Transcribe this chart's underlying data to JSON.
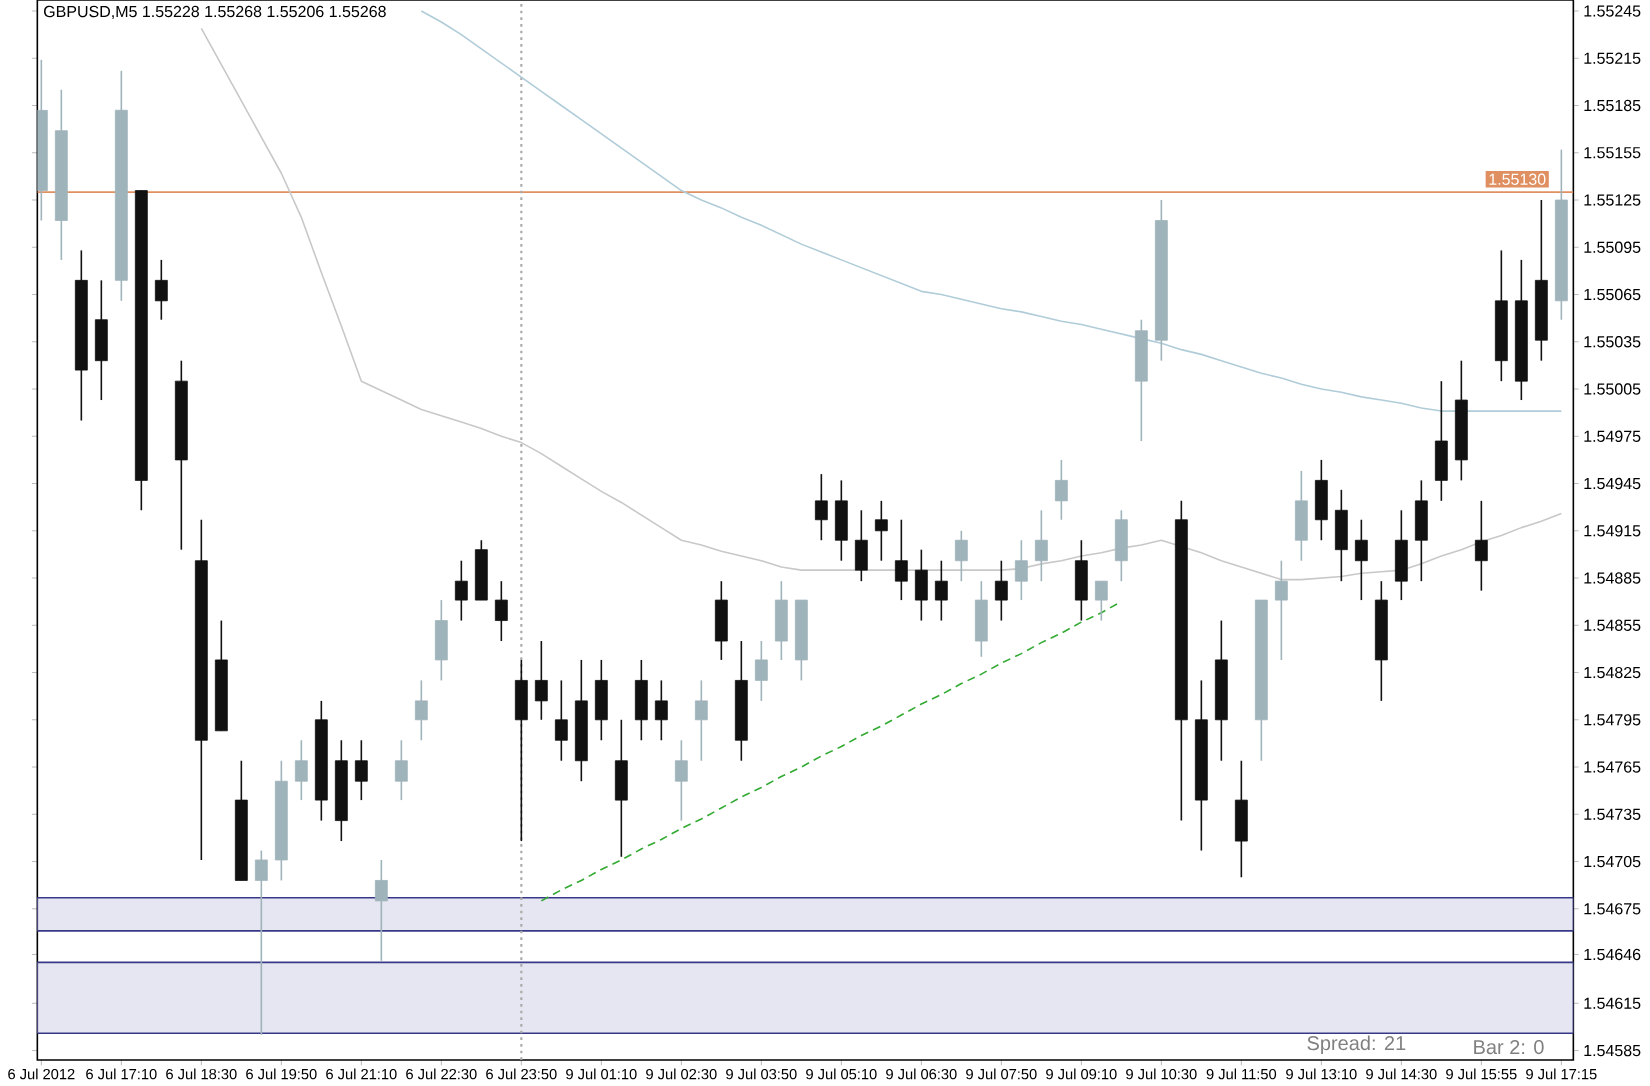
{
  "chart_data": {
    "type": "candlestick",
    "title": "GBPUSD,M5  1.55228 1.55268 1.55206 1.55268",
    "categories": [
      "6 Jul 2012",
      null,
      null,
      null,
      "6 Jul 17:10",
      null,
      null,
      null,
      "6 Jul 18:30",
      null,
      null,
      null,
      "6 Jul 19:50",
      null,
      null,
      null,
      "6 Jul 21:10",
      null,
      null,
      null,
      "6 Jul 22:30",
      null,
      null,
      null,
      "6 Jul 23:50",
      null,
      null,
      null,
      "9 Jul 01:10",
      null,
      null,
      null,
      "9 Jul 02:30",
      null,
      null,
      null,
      "9 Jul 03:50",
      null,
      null,
      null,
      "9 Jul 05:10",
      null,
      null,
      null,
      "9 Jul 06:30",
      null,
      null,
      null,
      "9 Jul 07:50",
      null,
      null,
      null,
      "9 Jul 09:10",
      null,
      null,
      null,
      "9 Jul 10:30",
      null,
      null,
      null,
      "9 Jul 11:50",
      null,
      null,
      null,
      "9 Jul 13:10",
      null,
      null,
      null,
      "9 Jul 14:30",
      null,
      null,
      null,
      "9 Jul 15:55",
      null,
      null,
      null,
      "9 Jul 17:15"
    ],
    "ohlc": [
      [
        1.55131,
        1.55214,
        1.55112,
        1.55182
      ],
      [
        1.55112,
        1.55195,
        1.55087,
        1.55169
      ],
      [
        1.55074,
        1.55093,
        1.54985,
        1.55017
      ],
      [
        1.55049,
        1.55074,
        1.54998,
        1.55023
      ],
      [
        1.55074,
        1.55207,
        1.55061,
        1.55182
      ],
      [
        1.55131,
        1.55131,
        1.54928,
        1.54947
      ],
      [
        1.55074,
        1.55087,
        1.55049,
        1.55061
      ],
      [
        1.5501,
        1.55023,
        1.54903,
        1.5496
      ],
      [
        1.54896,
        1.54922,
        1.54706,
        1.54782
      ],
      [
        1.54833,
        1.54858,
        1.54788,
        1.54788
      ],
      [
        1.54744,
        1.54769,
        1.54693,
        1.54693
      ],
      [
        1.54693,
        1.54712,
        1.54595,
        1.54706
      ],
      [
        1.54706,
        1.54769,
        1.54693,
        1.54756
      ],
      [
        1.54756,
        1.54782,
        1.54744,
        1.54769
      ],
      [
        1.54795,
        1.54807,
        1.54731,
        1.54744
      ],
      [
        1.54769,
        1.54782,
        1.54718,
        1.54731
      ],
      [
        1.54769,
        1.54782,
        1.54744,
        1.54756
      ],
      [
        1.5468,
        1.54706,
        1.54642,
        1.54693
      ],
      [
        1.54756,
        1.54782,
        1.54744,
        1.54769
      ],
      [
        1.54795,
        1.5482,
        1.54782,
        1.54807
      ],
      [
        1.54833,
        1.54871,
        1.5482,
        1.54858
      ],
      [
        1.54883,
        1.54896,
        1.54858,
        1.54871
      ],
      [
        1.54903,
        1.54909,
        1.54871,
        1.54871
      ],
      [
        1.54871,
        1.54883,
        1.54845,
        1.54858
      ],
      [
        1.5482,
        1.54833,
        1.54718,
        1.54795
      ],
      [
        1.5482,
        1.54845,
        1.54795,
        1.54807
      ],
      [
        1.54795,
        1.5482,
        1.54769,
        1.54782
      ],
      [
        1.54807,
        1.54833,
        1.54756,
        1.54769
      ],
      [
        1.5482,
        1.54833,
        1.54782,
        1.54795
      ],
      [
        1.54769,
        1.54795,
        1.54708,
        1.54744
      ],
      [
        1.5482,
        1.54833,
        1.54782,
        1.54795
      ],
      [
        1.54807,
        1.5482,
        1.54782,
        1.54795
      ],
      [
        1.54756,
        1.54782,
        1.54731,
        1.54769
      ],
      [
        1.54795,
        1.5482,
        1.54769,
        1.54807
      ],
      [
        1.54871,
        1.54883,
        1.54833,
        1.54845
      ],
      [
        1.5482,
        1.54845,
        1.54769,
        1.54782
      ],
      [
        1.5482,
        1.54845,
        1.54807,
        1.54833
      ],
      [
        1.54845,
        1.54883,
        1.54833,
        1.54871
      ],
      [
        1.54833,
        1.54871,
        1.5482,
        1.54871
      ],
      [
        1.54934,
        1.54951,
        1.54909,
        1.54922
      ],
      [
        1.54934,
        1.54947,
        1.54896,
        1.54909
      ],
      [
        1.54909,
        1.54928,
        1.54883,
        1.5489
      ],
      [
        1.54922,
        1.54934,
        1.54896,
        1.54915
      ],
      [
        1.54896,
        1.54922,
        1.54871,
        1.54883
      ],
      [
        1.5489,
        1.54903,
        1.54858,
        1.54871
      ],
      [
        1.54883,
        1.54896,
        1.54858,
        1.54871
      ],
      [
        1.54896,
        1.54915,
        1.54883,
        1.54909
      ],
      [
        1.54845,
        1.54883,
        1.54835,
        1.54871
      ],
      [
        1.54883,
        1.54896,
        1.54858,
        1.54871
      ],
      [
        1.54883,
        1.54909,
        1.54871,
        1.54896
      ],
      [
        1.54896,
        1.54928,
        1.54883,
        1.54909
      ],
      [
        1.54934,
        1.5496,
        1.54922,
        1.54947
      ],
      [
        1.54896,
        1.54909,
        1.54858,
        1.54871
      ],
      [
        1.54871,
        1.54883,
        1.54858,
        1.54883
      ],
      [
        1.54896,
        1.54928,
        1.54883,
        1.54922
      ],
      [
        1.5501,
        1.55049,
        1.54972,
        1.55042
      ],
      [
        1.55036,
        1.55125,
        1.55023,
        1.55112
      ],
      [
        1.54922,
        1.54934,
        1.54731,
        1.54795
      ],
      [
        1.54795,
        1.5482,
        1.54712,
        1.54744
      ],
      [
        1.54833,
        1.54858,
        1.54769,
        1.54795
      ],
      [
        1.54744,
        1.54769,
        1.54695,
        1.54718
      ],
      [
        1.54795,
        1.54871,
        1.54769,
        1.54871
      ],
      [
        1.54871,
        1.54896,
        1.54833,
        1.54883
      ],
      [
        1.54909,
        1.54953,
        1.54896,
        1.54934
      ],
      [
        1.54947,
        1.5496,
        1.54909,
        1.54922
      ],
      [
        1.54928,
        1.54941,
        1.54883,
        1.54903
      ],
      [
        1.54909,
        1.54922,
        1.54871,
        1.54896
      ],
      [
        1.54871,
        1.54883,
        1.54807,
        1.54833
      ],
      [
        1.54909,
        1.54928,
        1.54871,
        1.54883
      ],
      [
        1.54934,
        1.54947,
        1.54883,
        1.54909
      ],
      [
        1.54972,
        1.5501,
        1.54934,
        1.54947
      ],
      [
        1.54998,
        1.55023,
        1.54947,
        1.5496
      ],
      [
        1.54909,
        1.54934,
        1.54877,
        1.54896
      ],
      [
        1.55061,
        1.55093,
        1.5501,
        1.55023
      ],
      [
        1.55061,
        1.55087,
        1.54998,
        1.5501
      ],
      [
        1.55074,
        1.55125,
        1.55023,
        1.55036
      ],
      [
        1.55061,
        1.55157,
        1.55049,
        1.55125
      ]
    ],
    "colors": [
      "#9fb3ba",
      "#9fb3ba",
      "#111111",
      "#111111",
      "#9fb3ba",
      "#111111",
      "#111111",
      "#111111",
      "#111111",
      "#111111",
      "#111111",
      "#9fb3ba",
      "#9fb3ba",
      "#9fb3ba",
      "#111111",
      "#111111",
      "#111111",
      "#9fb3ba",
      "#9fb3ba",
      "#9fb3ba",
      "#9fb3ba",
      "#111111",
      "#111111",
      "#111111",
      "#111111",
      "#111111",
      "#111111",
      "#111111",
      "#111111",
      "#111111",
      "#111111",
      "#111111",
      "#9fb3ba",
      "#9fb3ba",
      "#111111",
      "#111111",
      "#9fb3ba",
      "#9fb3ba",
      "#9fb3ba",
      "#111111",
      "#111111",
      "#111111",
      "#111111",
      "#111111",
      "#111111",
      "#111111",
      "#9fb3ba",
      "#9fb3ba",
      "#111111",
      "#9fb3ba",
      "#9fb3ba",
      "#9fb3ba",
      "#111111",
      "#9fb3ba",
      "#9fb3ba",
      "#9fb3ba",
      "#9fb3ba",
      "#111111",
      "#111111",
      "#111111",
      "#111111",
      "#9fb3ba",
      "#9fb3ba",
      "#9fb3ba",
      "#111111",
      "#111111",
      "#111111",
      "#111111",
      "#111111",
      "#111111",
      "#111111",
      "#111111",
      "#111111",
      "#111111",
      "#111111",
      "#111111",
      "#9fb3ba"
    ],
    "series": [
      {
        "type": "line",
        "color": "#b0ccd8",
        "line_style": "solid",
        "values": [
          null,
          null,
          null,
          null,
          null,
          null,
          null,
          null,
          null,
          null,
          null,
          null,
          null,
          null,
          null,
          null,
          null,
          null,
          null,
          1.55245,
          1.55238,
          1.5523,
          1.55221,
          1.55212,
          1.55203,
          1.55194,
          1.55185,
          1.55176,
          1.55167,
          1.55158,
          1.55149,
          1.5514,
          1.55131,
          1.55125,
          1.5512,
          1.55114,
          1.55109,
          1.55103,
          1.55097,
          1.55092,
          1.55087,
          1.55082,
          1.55077,
          1.55072,
          1.55067,
          1.55065,
          1.55062,
          1.55059,
          1.55056,
          1.55054,
          1.55051,
          1.55048,
          1.55046,
          1.55043,
          1.5504,
          1.55037,
          1.55034,
          1.5503,
          1.55027,
          1.55023,
          1.55019,
          1.55015,
          1.55012,
          1.55008,
          1.55005,
          1.55003,
          1.55,
          1.54998,
          1.54996,
          1.54993,
          1.54991,
          1.54991,
          1.54991,
          1.54991,
          1.54991,
          1.54991,
          1.54991
        ]
      },
      {
        "type": "line",
        "color": "#c8c8c8",
        "line_style": "solid",
        "values": [
          null,
          null,
          null,
          null,
          null,
          null,
          null,
          null,
          1.55234,
          1.55211,
          1.55188,
          1.55165,
          1.55142,
          1.55114,
          1.55079,
          1.55045,
          1.5501,
          1.55004,
          1.54998,
          1.54992,
          1.54988,
          1.54984,
          1.5498,
          1.54975,
          1.54971,
          1.54964,
          1.54956,
          1.54948,
          1.5494,
          1.54933,
          1.54925,
          1.54917,
          1.54909,
          1.54906,
          1.54902,
          1.54899,
          1.54896,
          1.54892,
          1.5489,
          1.5489,
          1.5489,
          1.5489,
          1.5489,
          1.5489,
          1.5489,
          1.5489,
          1.5489,
          1.5489,
          1.5489,
          1.54891,
          1.54894,
          1.54896,
          1.54899,
          1.54901,
          1.54904,
          1.54906,
          1.54909,
          1.54905,
          1.54901,
          1.54896,
          1.54892,
          1.54888,
          1.54884,
          1.54884,
          1.54885,
          1.54886,
          1.54888,
          1.54889,
          1.5489,
          1.54894,
          1.54899,
          1.54903,
          1.54908,
          1.54912,
          1.54917,
          1.54921,
          1.54926
        ]
      },
      {
        "type": "line",
        "color": "#33aa33",
        "line_style": "dashed",
        "values": [
          null,
          null,
          null,
          null,
          null,
          null,
          null,
          null,
          null,
          null,
          null,
          null,
          null,
          null,
          null,
          null,
          null,
          null,
          null,
          null,
          null,
          null,
          null,
          null,
          null,
          1.5468,
          1.54687,
          1.54693,
          1.547,
          1.54706,
          1.54713,
          1.54719,
          1.54726,
          1.54732,
          1.54739,
          1.54746,
          1.54752,
          1.54759,
          1.54765,
          1.54772,
          1.54778,
          1.54785,
          1.54791,
          1.54798,
          1.54805,
          1.54811,
          1.54818,
          1.54824,
          1.54831,
          1.54837,
          1.54844,
          1.5485,
          1.54857,
          1.54863,
          1.5487,
          null,
          null,
          null,
          null,
          null,
          null,
          null,
          null,
          null,
          null,
          null,
          null,
          null,
          null,
          null,
          null,
          null,
          null,
          null,
          null,
          null,
          null
        ]
      }
    ],
    "ylim": [
      1.54579,
      1.55252
    ],
    "yticks": [
      1.54585,
      1.54615,
      1.54646,
      1.54675,
      1.54705,
      1.54735,
      1.54765,
      1.54795,
      1.54825,
      1.54855,
      1.54885,
      1.54915,
      1.54945,
      1.54975,
      1.55005,
      1.55035,
      1.55065,
      1.55095,
      1.55125,
      1.55155,
      1.55185,
      1.55215,
      1.55245
    ],
    "ref_lines": [
      {
        "axis": "y",
        "value": 1.5513,
        "label": "1.55130",
        "color": "#e09060"
      },
      {
        "axis": "x",
        "value": "6 Jul 23:50",
        "color": "#aaaaaa",
        "line_style": "dotted"
      }
    ],
    "bands": [
      {
        "axis": "y",
        "from": 1.54661,
        "to": 1.54682,
        "color": "#e6e6f2"
      },
      {
        "axis": "y",
        "from": 1.54596,
        "to": 1.54641,
        "color": "#e6e6f2"
      }
    ],
    "annotations": [
      "Spread: 21",
      "Bar 2: 0"
    ]
  }
}
